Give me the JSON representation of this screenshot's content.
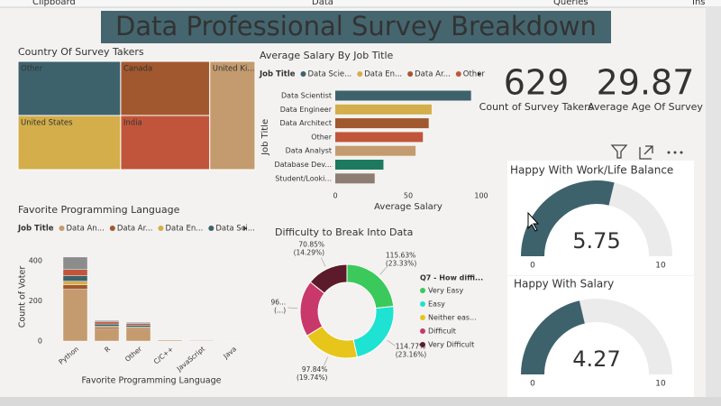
{
  "ribbon": [
    "Clipboard",
    "Data",
    "Queries",
    "Ins"
  ],
  "header": {
    "title": "Data Professional Survey Breakdown"
  },
  "cards": [
    {
      "value": 629,
      "label": "Count of Survey Takers"
    },
    {
      "value": 29.87,
      "label": "Average Age Of Survey"
    }
  ],
  "chart_data": [
    {
      "type": "treemap",
      "title": "Country Of Survey Takers",
      "categories": [
        "Other",
        "United States",
        "Canada",
        "India",
        "United Ki..."
      ],
      "values": [
        68,
        68,
        59,
        59,
        60
      ],
      "colors": [
        "#3e626c",
        "#d3ae4a",
        "#a2582e",
        "#c1553b",
        "#c49b6e"
      ]
    },
    {
      "type": "hbar",
      "title": "Average Salary By Job Title",
      "legend_title": "Job Title",
      "legend": [
        "Data Scie...",
        "Data En...",
        "Data Ar...",
        "Other"
      ],
      "legend_colors": [
        "#3e626c",
        "#d3ae4a",
        "#a2582e",
        "#c1553b"
      ],
      "categories": [
        "Data Scientist",
        "Data Engineer",
        "Data Architect",
        "Other",
        "Data Analyst",
        "Database Dev...",
        "Student/Looki..."
      ],
      "values": [
        93,
        66,
        64,
        60,
        55,
        33,
        27
      ],
      "colors": [
        "#3e626c",
        "#d3ae4a",
        "#a2582e",
        "#c1553b",
        "#c49b6e",
        "#1e7a5e",
        "#8d7d72"
      ],
      "xlim": [
        0,
        100
      ],
      "xticks": [
        0,
        50,
        100
      ],
      "xlabel": "Average Salary",
      "ylabel": "Job Title"
    },
    {
      "type": "stacked_bar",
      "title": "Favorite Programming Language",
      "legend_title": "Job Title",
      "categories": [
        "Python",
        "R",
        "Other",
        "C/C++",
        "JavaScript",
        "Java"
      ],
      "series": [
        {
          "name": "Data An...",
          "color": "#c49b6e",
          "values": [
            258,
            60,
            55,
            5,
            3,
            1
          ]
        },
        {
          "name": "Data Ar...",
          "color": "#a2582e",
          "values": [
            22,
            8,
            8,
            1,
            0,
            0
          ]
        },
        {
          "name": "Data En...",
          "color": "#d3ae4a",
          "values": [
            18,
            5,
            6,
            2,
            1,
            0
          ]
        },
        {
          "name": "Data Sci...",
          "color": "#3e626c",
          "values": [
            27,
            12,
            10,
            2,
            1,
            1
          ]
        },
        {
          "color": "#c1553b",
          "values": [
            31,
            10,
            8,
            0,
            0,
            0
          ]
        },
        {
          "color": "#8c8c8c",
          "values": [
            62,
            7,
            6,
            0,
            0,
            0
          ]
        }
      ],
      "ylim": [
        0,
        440
      ],
      "yticks": [
        0,
        200,
        400
      ],
      "xlabel": "Favorite Programming Language",
      "ylabel": "Count of Voter"
    },
    {
      "type": "donut",
      "title": "Difficulty to Break Into Data",
      "legend_title": "Q7 - How diffi...",
      "categories": [
        "Very Easy",
        "Easy",
        "Neither eas...",
        "Difficult",
        "Very Difficult"
      ],
      "values": [
        23.33,
        23.16,
        19.74,
        19.48,
        14.29
      ],
      "value_labels": [
        "(23.33%)",
        "(23.16%)",
        "(19.74%)",
        "(...)",
        "(14.29%)"
      ],
      "metric_labels": [
        "115.63%",
        "114.77%",
        "97.84%",
        "96...",
        "70.85%"
      ],
      "colors": [
        "#3cc95b",
        "#1ee2d2",
        "#e7c51a",
        "#c9386b",
        "#5b1b2b"
      ]
    },
    {
      "type": "gauge",
      "title": "Happy With Work/Life Balance",
      "value": 5.75,
      "ylim": [
        0,
        10
      ],
      "yticks": [
        0,
        10
      ],
      "color": "#3e626c"
    },
    {
      "type": "gauge",
      "title": "Happy With Salary",
      "value": 4.27,
      "ylim": [
        0,
        10
      ],
      "yticks": [
        0,
        10
      ],
      "color": "#3e626c"
    }
  ]
}
